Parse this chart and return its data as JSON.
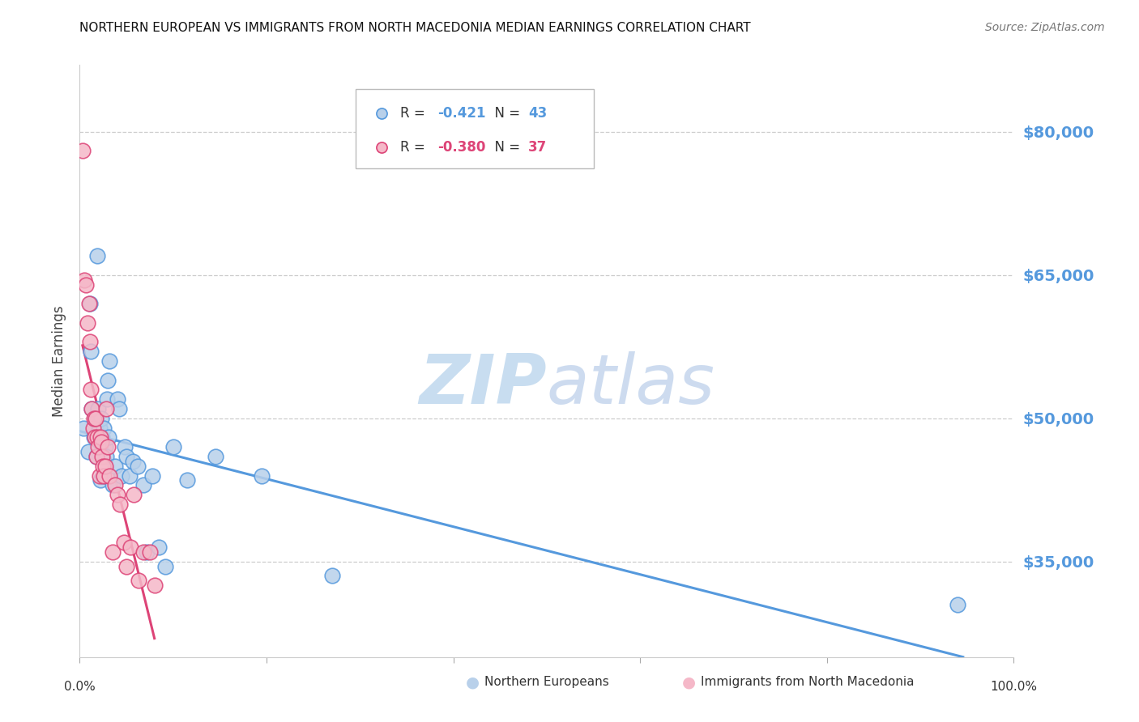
{
  "title": "NORTHERN EUROPEAN VS IMMIGRANTS FROM NORTH MACEDONIA MEDIAN EARNINGS CORRELATION CHART",
  "source": "Source: ZipAtlas.com",
  "ylabel": "Median Earnings",
  "blue_R": "-0.421",
  "blue_N": "43",
  "pink_R": "-0.380",
  "pink_N": "37",
  "blue_fill": "#b8d0ea",
  "pink_fill": "#f5b8c8",
  "line_blue": "#5599dd",
  "line_pink": "#dd4477",
  "line_gray": "#cccccc",
  "label_blue_color": "#5599dd",
  "label_pink_color": "#dd4477",
  "right_axis_color": "#5599dd",
  "legend_blue_label": "Northern Europeans",
  "legend_pink_label": "Immigrants from North Macedonia",
  "ytick_vals": [
    35000,
    50000,
    65000,
    80000
  ],
  "ymin": 25000,
  "ymax": 87000,
  "xmin": 0.0,
  "xmax": 1.0,
  "blue_scatter_x": [
    0.004,
    0.009,
    0.011,
    0.012,
    0.013,
    0.015,
    0.016,
    0.018,
    0.019,
    0.02,
    0.021,
    0.022,
    0.023,
    0.024,
    0.025,
    0.026,
    0.027,
    0.028,
    0.029,
    0.03,
    0.031,
    0.032,
    0.035,
    0.038,
    0.04,
    0.042,
    0.045,
    0.048,
    0.05,
    0.053,
    0.057,
    0.062,
    0.068,
    0.072,
    0.078,
    0.085,
    0.092,
    0.1,
    0.115,
    0.145,
    0.195,
    0.27,
    0.94
  ],
  "blue_scatter_y": [
    49000,
    46500,
    62000,
    57000,
    51000,
    48000,
    50000,
    46000,
    67000,
    51000,
    49000,
    43500,
    50000,
    48000,
    44000,
    49000,
    47000,
    46000,
    52000,
    54000,
    48000,
    56000,
    43000,
    45000,
    52000,
    51000,
    44000,
    47000,
    46000,
    44000,
    45500,
    45000,
    43000,
    36000,
    44000,
    36500,
    34500,
    47000,
    43500,
    46000,
    44000,
    33500,
    30500
  ],
  "pink_scatter_x": [
    0.003,
    0.005,
    0.007,
    0.008,
    0.01,
    0.011,
    0.012,
    0.013,
    0.014,
    0.015,
    0.016,
    0.017,
    0.018,
    0.019,
    0.02,
    0.021,
    0.022,
    0.023,
    0.024,
    0.025,
    0.026,
    0.027,
    0.028,
    0.03,
    0.032,
    0.035,
    0.038,
    0.04,
    0.043,
    0.047,
    0.05,
    0.054,
    0.058,
    0.063,
    0.068,
    0.075,
    0.08
  ],
  "pink_scatter_y": [
    78000,
    64500,
    64000,
    60000,
    62000,
    58000,
    53000,
    51000,
    49000,
    50000,
    48000,
    50000,
    46000,
    48000,
    47000,
    44000,
    48000,
    47500,
    46000,
    45000,
    44000,
    45000,
    51000,
    47000,
    44000,
    36000,
    43000,
    42000,
    41000,
    37000,
    34500,
    36500,
    42000,
    33000,
    36000,
    36000,
    32500
  ]
}
